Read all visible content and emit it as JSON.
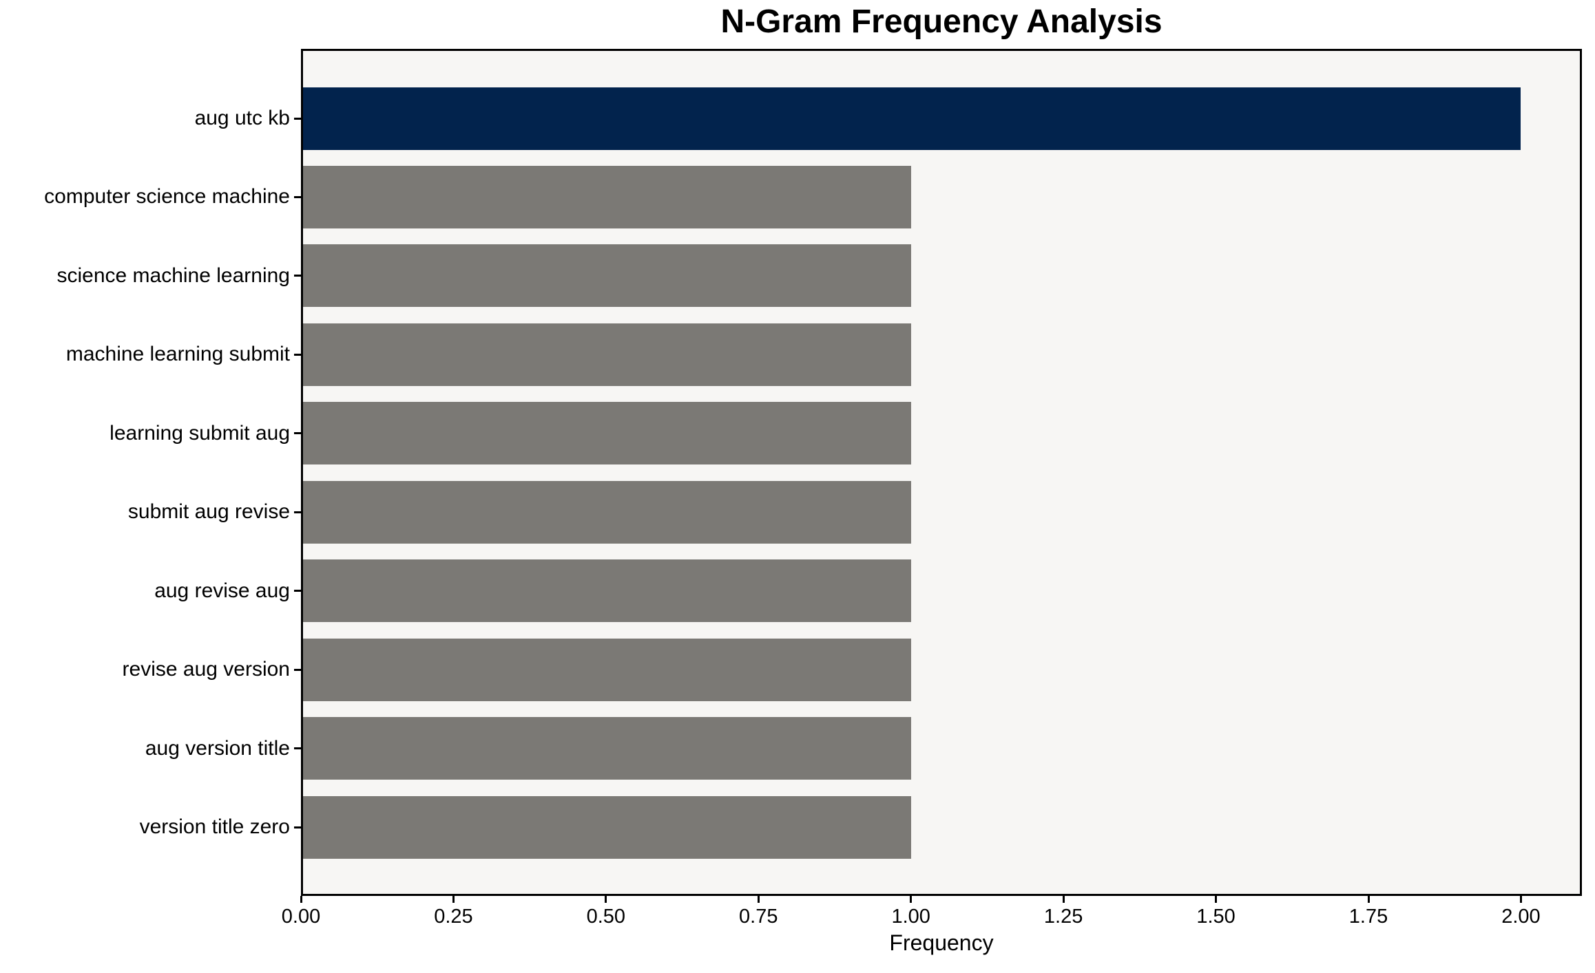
{
  "title": "N-Gram Frequency Analysis",
  "chart_data": {
    "type": "bar",
    "orientation": "horizontal",
    "title": "N-Gram Frequency Analysis",
    "xlabel": "Frequency",
    "ylabel": "",
    "categories": [
      "aug utc kb",
      "computer science machine",
      "science machine learning",
      "machine learning submit",
      "learning submit aug",
      "submit aug revise",
      "aug revise aug",
      "revise aug version",
      "aug version title",
      "version title zero"
    ],
    "values": [
      2,
      1,
      1,
      1,
      1,
      1,
      1,
      1,
      1,
      1
    ],
    "bar_colors": [
      "#02234d",
      "#7b7975",
      "#7b7975",
      "#7b7975",
      "#7b7975",
      "#7b7975",
      "#7b7975",
      "#7b7975",
      "#7b7975",
      "#7b7975"
    ],
    "xlim": [
      0,
      2.1
    ],
    "xticks": [
      0.0,
      0.25,
      0.5,
      0.75,
      1.0,
      1.25,
      1.5,
      1.75,
      2.0
    ],
    "xtick_labels": [
      "0.00",
      "0.25",
      "0.50",
      "0.75",
      "1.00",
      "1.25",
      "1.50",
      "1.75",
      "2.00"
    ],
    "grid": false,
    "legend_position": "none",
    "colors": {
      "highlight_bar": "#02234d",
      "default_bar": "#7b7975",
      "plot_background": "#f7f6f4",
      "figure_background": "#ffffff",
      "spine": "#000000",
      "text": "#000000"
    }
  }
}
